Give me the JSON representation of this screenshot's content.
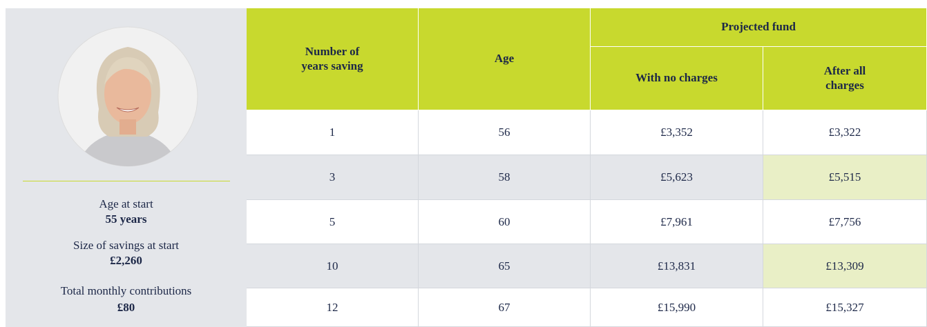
{
  "profile": {
    "items": [
      {
        "label": "Age at start",
        "value": "55 years"
      },
      {
        "label": "Size of savings at start",
        "value": "£2,260"
      },
      {
        "label": "Total monthly contributions",
        "value": "£80"
      }
    ]
  },
  "table": {
    "headers": {
      "years": "Number of years saving",
      "age": "Age",
      "group": "Projected fund",
      "no_charges": "With no charges",
      "after_charges": "After all charges"
    },
    "rows": [
      [
        "1",
        "56",
        "£3,352",
        "£3,322"
      ],
      [
        "3",
        "58",
        "£5,623",
        "£5,515"
      ],
      [
        "5",
        "60",
        "£7,961",
        "£7,756"
      ],
      [
        "10",
        "65",
        "£13,831",
        "£13,309"
      ],
      [
        "12",
        "67",
        "£15,990",
        "£15,327"
      ]
    ]
  }
}
